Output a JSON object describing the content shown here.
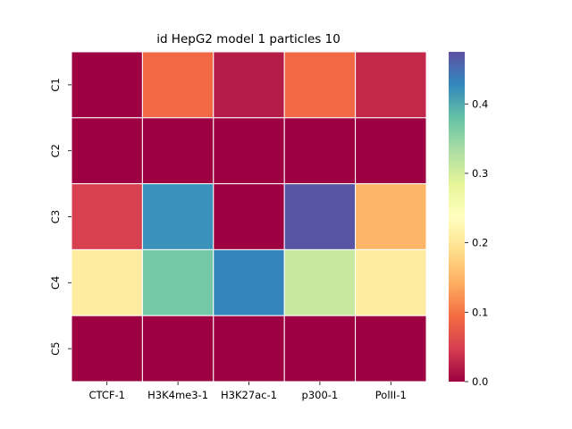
{
  "chart_data": {
    "type": "heatmap",
    "title": "id HepG2 model 1 particles 10",
    "xlabel": "",
    "ylabel": "",
    "columns": [
      "CTCF-1",
      "H3K4me3-1",
      "H3K27ac-1",
      "p300-1",
      "PolII-1"
    ],
    "rows": [
      "C1",
      "C2",
      "C3",
      "C4",
      "C5"
    ],
    "values": [
      [
        0.0,
        0.09,
        0.02,
        0.09,
        0.03
      ],
      [
        0.0,
        0.0,
        0.0,
        0.0,
        0.0
      ],
      [
        0.05,
        0.42,
        0.0,
        0.47,
        0.15
      ],
      [
        0.21,
        0.37,
        0.43,
        0.31,
        0.21
      ],
      [
        0.0,
        0.0,
        0.0,
        0.0,
        0.0
      ]
    ],
    "colormap": "Spectral",
    "colorbar": {
      "vmin": 0.0,
      "vmax": 0.475,
      "ticks": [
        0.0,
        0.1,
        0.2,
        0.3,
        0.4
      ],
      "tick_labels": [
        "0.0",
        "0.1",
        "0.2",
        "0.3",
        "0.4"
      ]
    },
    "grid": false,
    "cell_border_color": "#ffffff"
  }
}
